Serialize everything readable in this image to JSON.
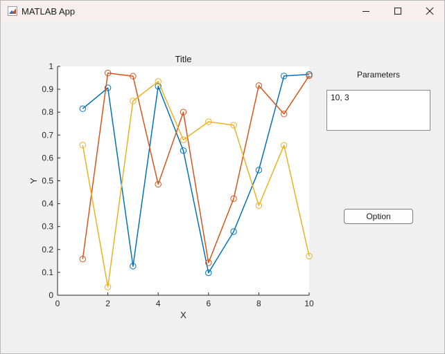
{
  "window": {
    "title": "MATLAB App"
  },
  "params_panel": {
    "label": "Parameters",
    "value": "10, 3"
  },
  "option_button": {
    "label": "Option"
  },
  "colors": {
    "series1": "#0072BD",
    "series2": "#D95319",
    "series3": "#EDB120",
    "axes_bg": "#ffffff",
    "window_bg": "#f0f0f0"
  },
  "chart_data": {
    "type": "line",
    "title": "Title",
    "xlabel": "X",
    "ylabel": "Y",
    "xlim": [
      0,
      10
    ],
    "ylim": [
      0,
      1
    ],
    "x_ticks": [
      "0",
      "2",
      "4",
      "6",
      "8",
      "10"
    ],
    "y_ticks": [
      "0",
      "0.1",
      "0.2",
      "0.3",
      "0.4",
      "0.5",
      "0.6",
      "0.7",
      "0.8",
      "0.9",
      "1"
    ],
    "marker": "circle",
    "grid": false,
    "legend": "none",
    "x": [
      1,
      2,
      3,
      4,
      5,
      6,
      7,
      8,
      9,
      10
    ],
    "series": [
      {
        "values": [
          0.815,
          0.906,
          0.127,
          0.913,
          0.632,
          0.098,
          0.278,
          0.547,
          0.958,
          0.965
        ]
      },
      {
        "values": [
          0.158,
          0.971,
          0.957,
          0.485,
          0.8,
          0.142,
          0.422,
          0.916,
          0.792,
          0.959
        ]
      },
      {
        "values": [
          0.656,
          0.036,
          0.849,
          0.934,
          0.679,
          0.758,
          0.743,
          0.392,
          0.655,
          0.171
        ]
      }
    ]
  }
}
